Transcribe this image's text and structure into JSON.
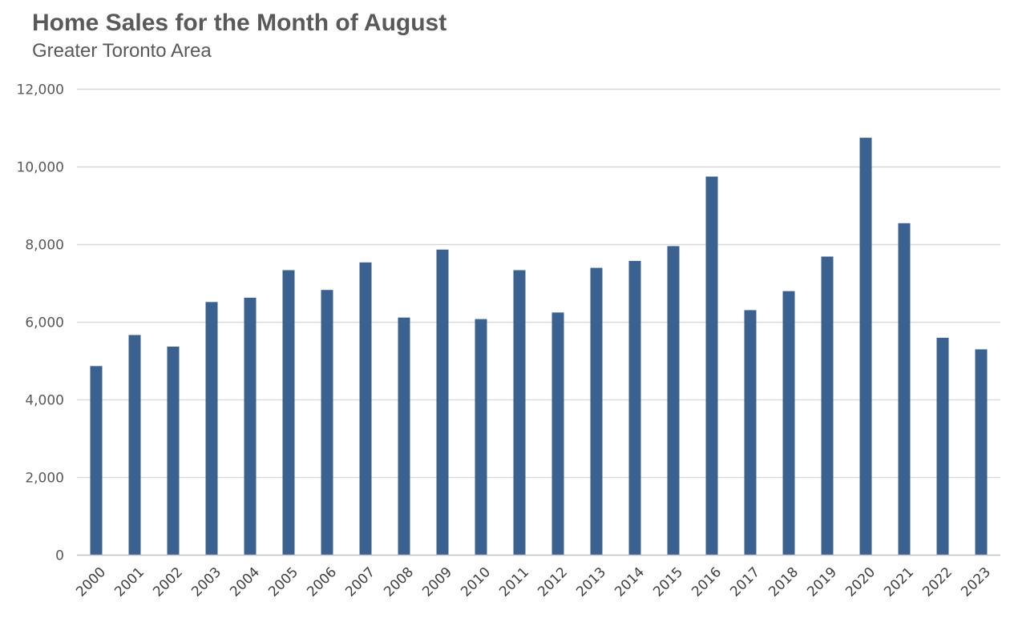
{
  "chart_data": {
    "type": "bar",
    "title": "Home Sales for the Month of August",
    "subtitle": "Greater Toronto Area",
    "xlabel": "",
    "ylabel": "",
    "ylim": [
      0,
      12000
    ],
    "yticks": [
      0,
      2000,
      4000,
      6000,
      8000,
      10000,
      12000
    ],
    "ytick_labels": [
      "0",
      "2,000",
      "4,000",
      "6,000",
      "8,000",
      "10,000",
      "12,000"
    ],
    "grid": true,
    "legend": "none",
    "bar_color": "#3A6190",
    "grid_color": "#D9D9D9",
    "categories": [
      "2000",
      "2001",
      "2002",
      "2003",
      "2004",
      "2005",
      "2006",
      "2007",
      "2008",
      "2009",
      "2010",
      "2011",
      "2012",
      "2013",
      "2014",
      "2015",
      "2016",
      "2017",
      "2018",
      "2019",
      "2020",
      "2021",
      "2022",
      "2023"
    ],
    "series": [
      {
        "name": "Home Sales",
        "values": [
          4860,
          5660,
          5360,
          6510,
          6620,
          7330,
          6820,
          7530,
          6110,
          7860,
          6070,
          7330,
          6240,
          7390,
          7570,
          7950,
          9740,
          6300,
          6790,
          7680,
          10740,
          8540,
          5590,
          5290
        ]
      }
    ]
  }
}
